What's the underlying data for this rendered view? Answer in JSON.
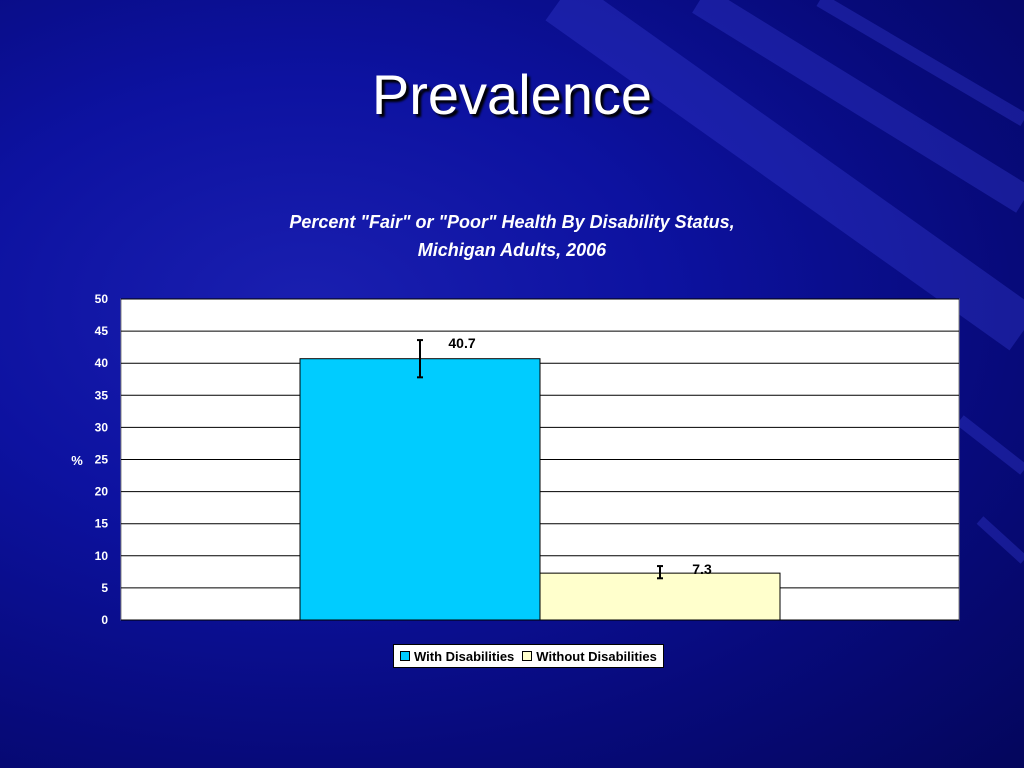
{
  "slide": {
    "title": "Prevalence"
  },
  "chart_data": {
    "type": "bar",
    "title_lines": [
      "Percent \"Fair\" or \"Poor\" Health By Disability Status,",
      "Michigan Adults, 2006"
    ],
    "ylabel": "%",
    "ylim": [
      0,
      50
    ],
    "yticks": [
      0,
      5,
      10,
      15,
      20,
      25,
      30,
      35,
      40,
      45,
      50
    ],
    "grid": true,
    "legend_position": "bottom",
    "series": [
      {
        "name": "With Disabilities",
        "values": [
          40.7
        ],
        "color": "#00ccff",
        "error": [
          37.8,
          43.6
        ]
      },
      {
        "name": "Without Disabilities",
        "values": [
          7.3
        ],
        "color": "#ffffcc",
        "error": [
          6.5,
          8.4
        ]
      }
    ],
    "data_labels": [
      "40.7",
      "7.3"
    ]
  }
}
